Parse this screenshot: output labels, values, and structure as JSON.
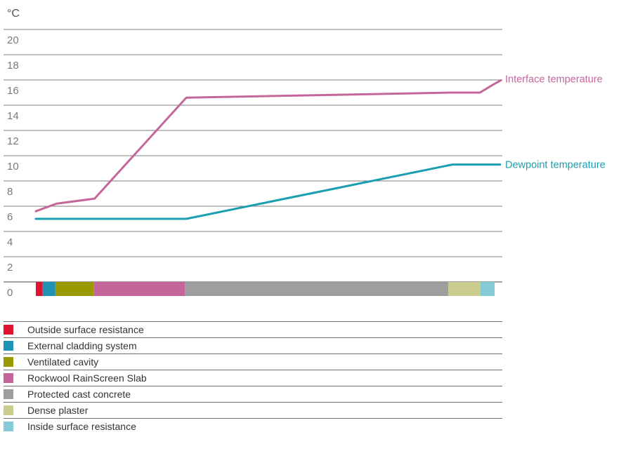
{
  "chart_data": {
    "type": "line",
    "ylabel": "°C",
    "ylim": [
      0,
      20
    ],
    "y_ticks": [
      "0",
      "2",
      "4",
      "6",
      "8",
      "10",
      "12",
      "14",
      "16",
      "18",
      "20"
    ],
    "grid": true,
    "layers": [
      {
        "name": "Outside surface resistance",
        "color": "#e0142e",
        "thickness": 0.015
      },
      {
        "name": "External cladding system",
        "color": "#1f93b5",
        "thickness": 0.028
      },
      {
        "name": "Ventilated cavity",
        "color": "#999a00",
        "thickness": 0.085
      },
      {
        "name": "Rockwool RainScreen Slab",
        "color": "#c5669b",
        "thickness": 0.2
      },
      {
        "name": "Protected cast concrete",
        "color": "#9e9e9e",
        "thickness": 0.58
      },
      {
        "name": "Dense plaster",
        "color": "#c9cc8c",
        "thickness": 0.07
      },
      {
        "name": "Inside surface resistance",
        "color": "#86cad8",
        "thickness": 0.032
      }
    ],
    "series": [
      {
        "name": "Interface temperature",
        "color": "#c5669b",
        "points": [
          [
            0,
            5.6
          ],
          [
            0.045,
            6.2
          ],
          [
            0.128,
            6.6
          ],
          [
            0.328,
            14.6
          ],
          [
            0.908,
            15.0
          ],
          [
            0.968,
            15.0
          ],
          [
            1.0,
            15.7
          ]
        ]
      },
      {
        "name": "Dewpoint temperature",
        "color": "#1a9fb0",
        "points": [
          [
            0,
            5.0
          ],
          [
            0.328,
            5.0
          ],
          [
            0.908,
            9.3
          ],
          [
            1.0,
            9.3
          ]
        ]
      }
    ]
  }
}
